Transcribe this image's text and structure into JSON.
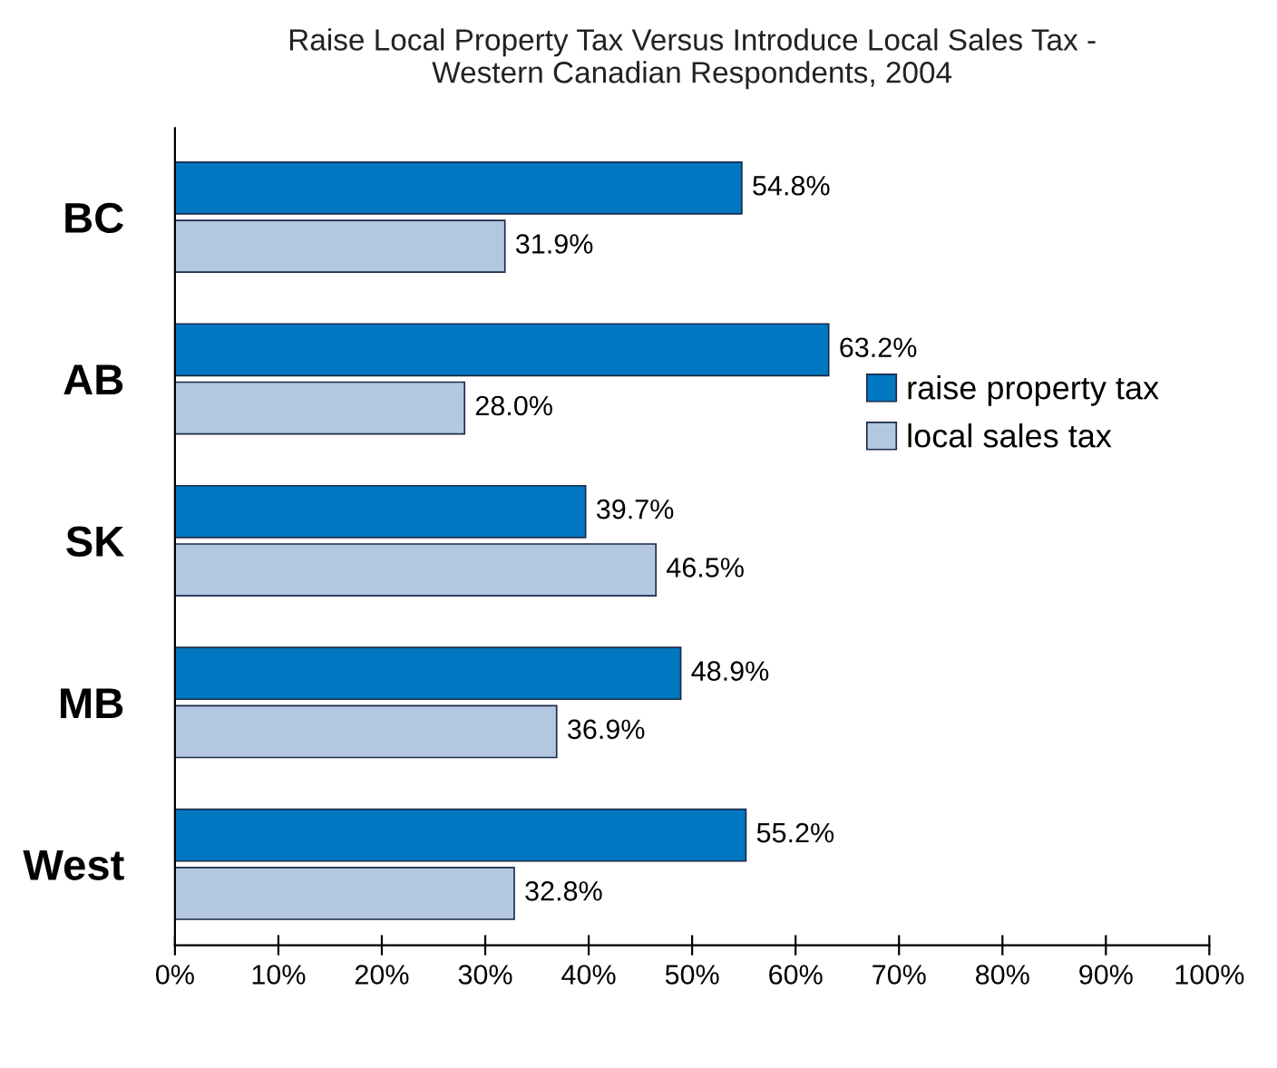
{
  "chart_data": {
    "type": "bar",
    "orientation": "horizontal",
    "title": "Raise Local Property Tax Versus Introduce Local Sales Tax -\nWestern Canadian Respondents, 2004",
    "categories": [
      "BC",
      "AB",
      "SK",
      "MB",
      "West"
    ],
    "series": [
      {
        "name": "raise property tax",
        "color": "#0077c0",
        "values": [
          54.8,
          63.2,
          39.7,
          48.9,
          55.2
        ],
        "value_labels": [
          "54.8%",
          "63.2%",
          "39.7%",
          "48.9%",
          "55.2%"
        ]
      },
      {
        "name": "local sales tax",
        "color": "#b3c7e0",
        "values": [
          31.9,
          28.0,
          46.5,
          36.9,
          32.8
        ],
        "value_labels": [
          "31.9%",
          "28.0%",
          "46.5%",
          "36.9%",
          "32.8%"
        ]
      }
    ],
    "xlim": [
      0,
      100
    ],
    "xticks": [
      {
        "value": 0,
        "label": "0%"
      },
      {
        "value": 10,
        "label": "10%"
      },
      {
        "value": 20,
        "label": "20%"
      },
      {
        "value": 30,
        "label": "30%"
      },
      {
        "value": 40,
        "label": "40%"
      },
      {
        "value": 50,
        "label": "50%"
      },
      {
        "value": 60,
        "label": "60%"
      },
      {
        "value": 70,
        "label": "70%"
      },
      {
        "value": 80,
        "label": "80%"
      },
      {
        "value": 90,
        "label": "90%"
      },
      {
        "value": 100,
        "label": "100%"
      }
    ],
    "legend": "right",
    "grid": false
  }
}
